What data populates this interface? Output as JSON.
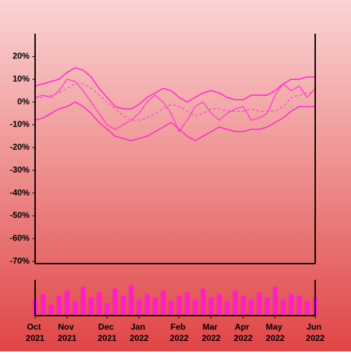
{
  "chart_data": [
    {
      "type": "line",
      "ylim": [
        -71,
        30
      ],
      "yticks": [
        {
          "value": 20,
          "label": "20%"
        },
        {
          "value": 10,
          "label": "10%"
        },
        {
          "value": 0,
          "label": "0%"
        },
        {
          "value": -10,
          "label": "-10%"
        },
        {
          "value": -20,
          "label": "-20%"
        },
        {
          "value": -30,
          "label": "-30%"
        },
        {
          "value": -40,
          "label": "-40%"
        },
        {
          "value": -50,
          "label": "-50%"
        },
        {
          "value": -60,
          "label": "-60%"
        },
        {
          "value": -70,
          "label": "-70%"
        }
      ],
      "series": [
        {
          "color": "#ff44cc",
          "style": "solid",
          "values": [
            2,
            3,
            2,
            5,
            10,
            9,
            5,
            0,
            -5,
            -10,
            -12,
            -10,
            -8,
            -5,
            0,
            3,
            0,
            -5,
            -13,
            -8,
            -2,
            0,
            -5,
            -8,
            -5,
            -3,
            -2,
            -8,
            -7,
            -5,
            3,
            8,
            5,
            7,
            2,
            6
          ]
        },
        {
          "color": "#ff33cc",
          "style": "dashed",
          "values": [
            2,
            2,
            3,
            4,
            6,
            8,
            8,
            6,
            3,
            0,
            -3,
            -6,
            -8,
            -8,
            -7,
            -5,
            -3,
            -1,
            -2,
            -4,
            -6,
            -5,
            -3,
            -3,
            -4,
            -4,
            -4,
            -3,
            -4,
            -4,
            -4,
            -2,
            2,
            3,
            4,
            4
          ]
        },
        {
          "color": "#ff22cc",
          "style": "solid",
          "values": [
            7,
            8,
            9,
            10,
            13,
            15,
            14,
            11,
            6,
            2,
            -2,
            -3,
            -3,
            -1,
            2,
            4,
            6,
            5,
            2,
            0,
            2,
            4,
            5,
            4,
            2,
            1,
            1,
            3,
            3,
            3,
            5,
            8,
            10,
            10,
            11,
            11
          ]
        },
        {
          "color": "#ff22cc",
          "style": "solid",
          "values": [
            -8,
            -7,
            -5,
            -3,
            -2,
            0,
            -2,
            -5,
            -9,
            -12,
            -15,
            -16,
            -17,
            -16,
            -15,
            -13,
            -11,
            -9,
            -12,
            -15,
            -17,
            -15,
            -13,
            -11,
            -12,
            -13,
            -13,
            -12,
            -12,
            -11,
            -9,
            -7,
            -4,
            -2,
            -2,
            -2
          ]
        }
      ]
    },
    {
      "type": "bar",
      "color": "#ff1fc8",
      "ylim": [
        0,
        100
      ],
      "categories": [
        "Oct 2021",
        null,
        null,
        null,
        "Nov 2021",
        null,
        null,
        null,
        null,
        "Dec 2021",
        null,
        null,
        null,
        "Jan 2022",
        null,
        null,
        null,
        null,
        "Feb 2022",
        null,
        null,
        null,
        "Mar 2022",
        null,
        null,
        null,
        "Apr 2022",
        null,
        null,
        null,
        "May 2022",
        null,
        null,
        null,
        null,
        "Jun 2022"
      ],
      "values": [
        45,
        60,
        30,
        55,
        70,
        40,
        80,
        50,
        65,
        35,
        75,
        55,
        85,
        45,
        60,
        50,
        70,
        40,
        55,
        65,
        45,
        75,
        50,
        60,
        40,
        70,
        55,
        45,
        65,
        50,
        80,
        45,
        60,
        55,
        40,
        50
      ]
    }
  ]
}
